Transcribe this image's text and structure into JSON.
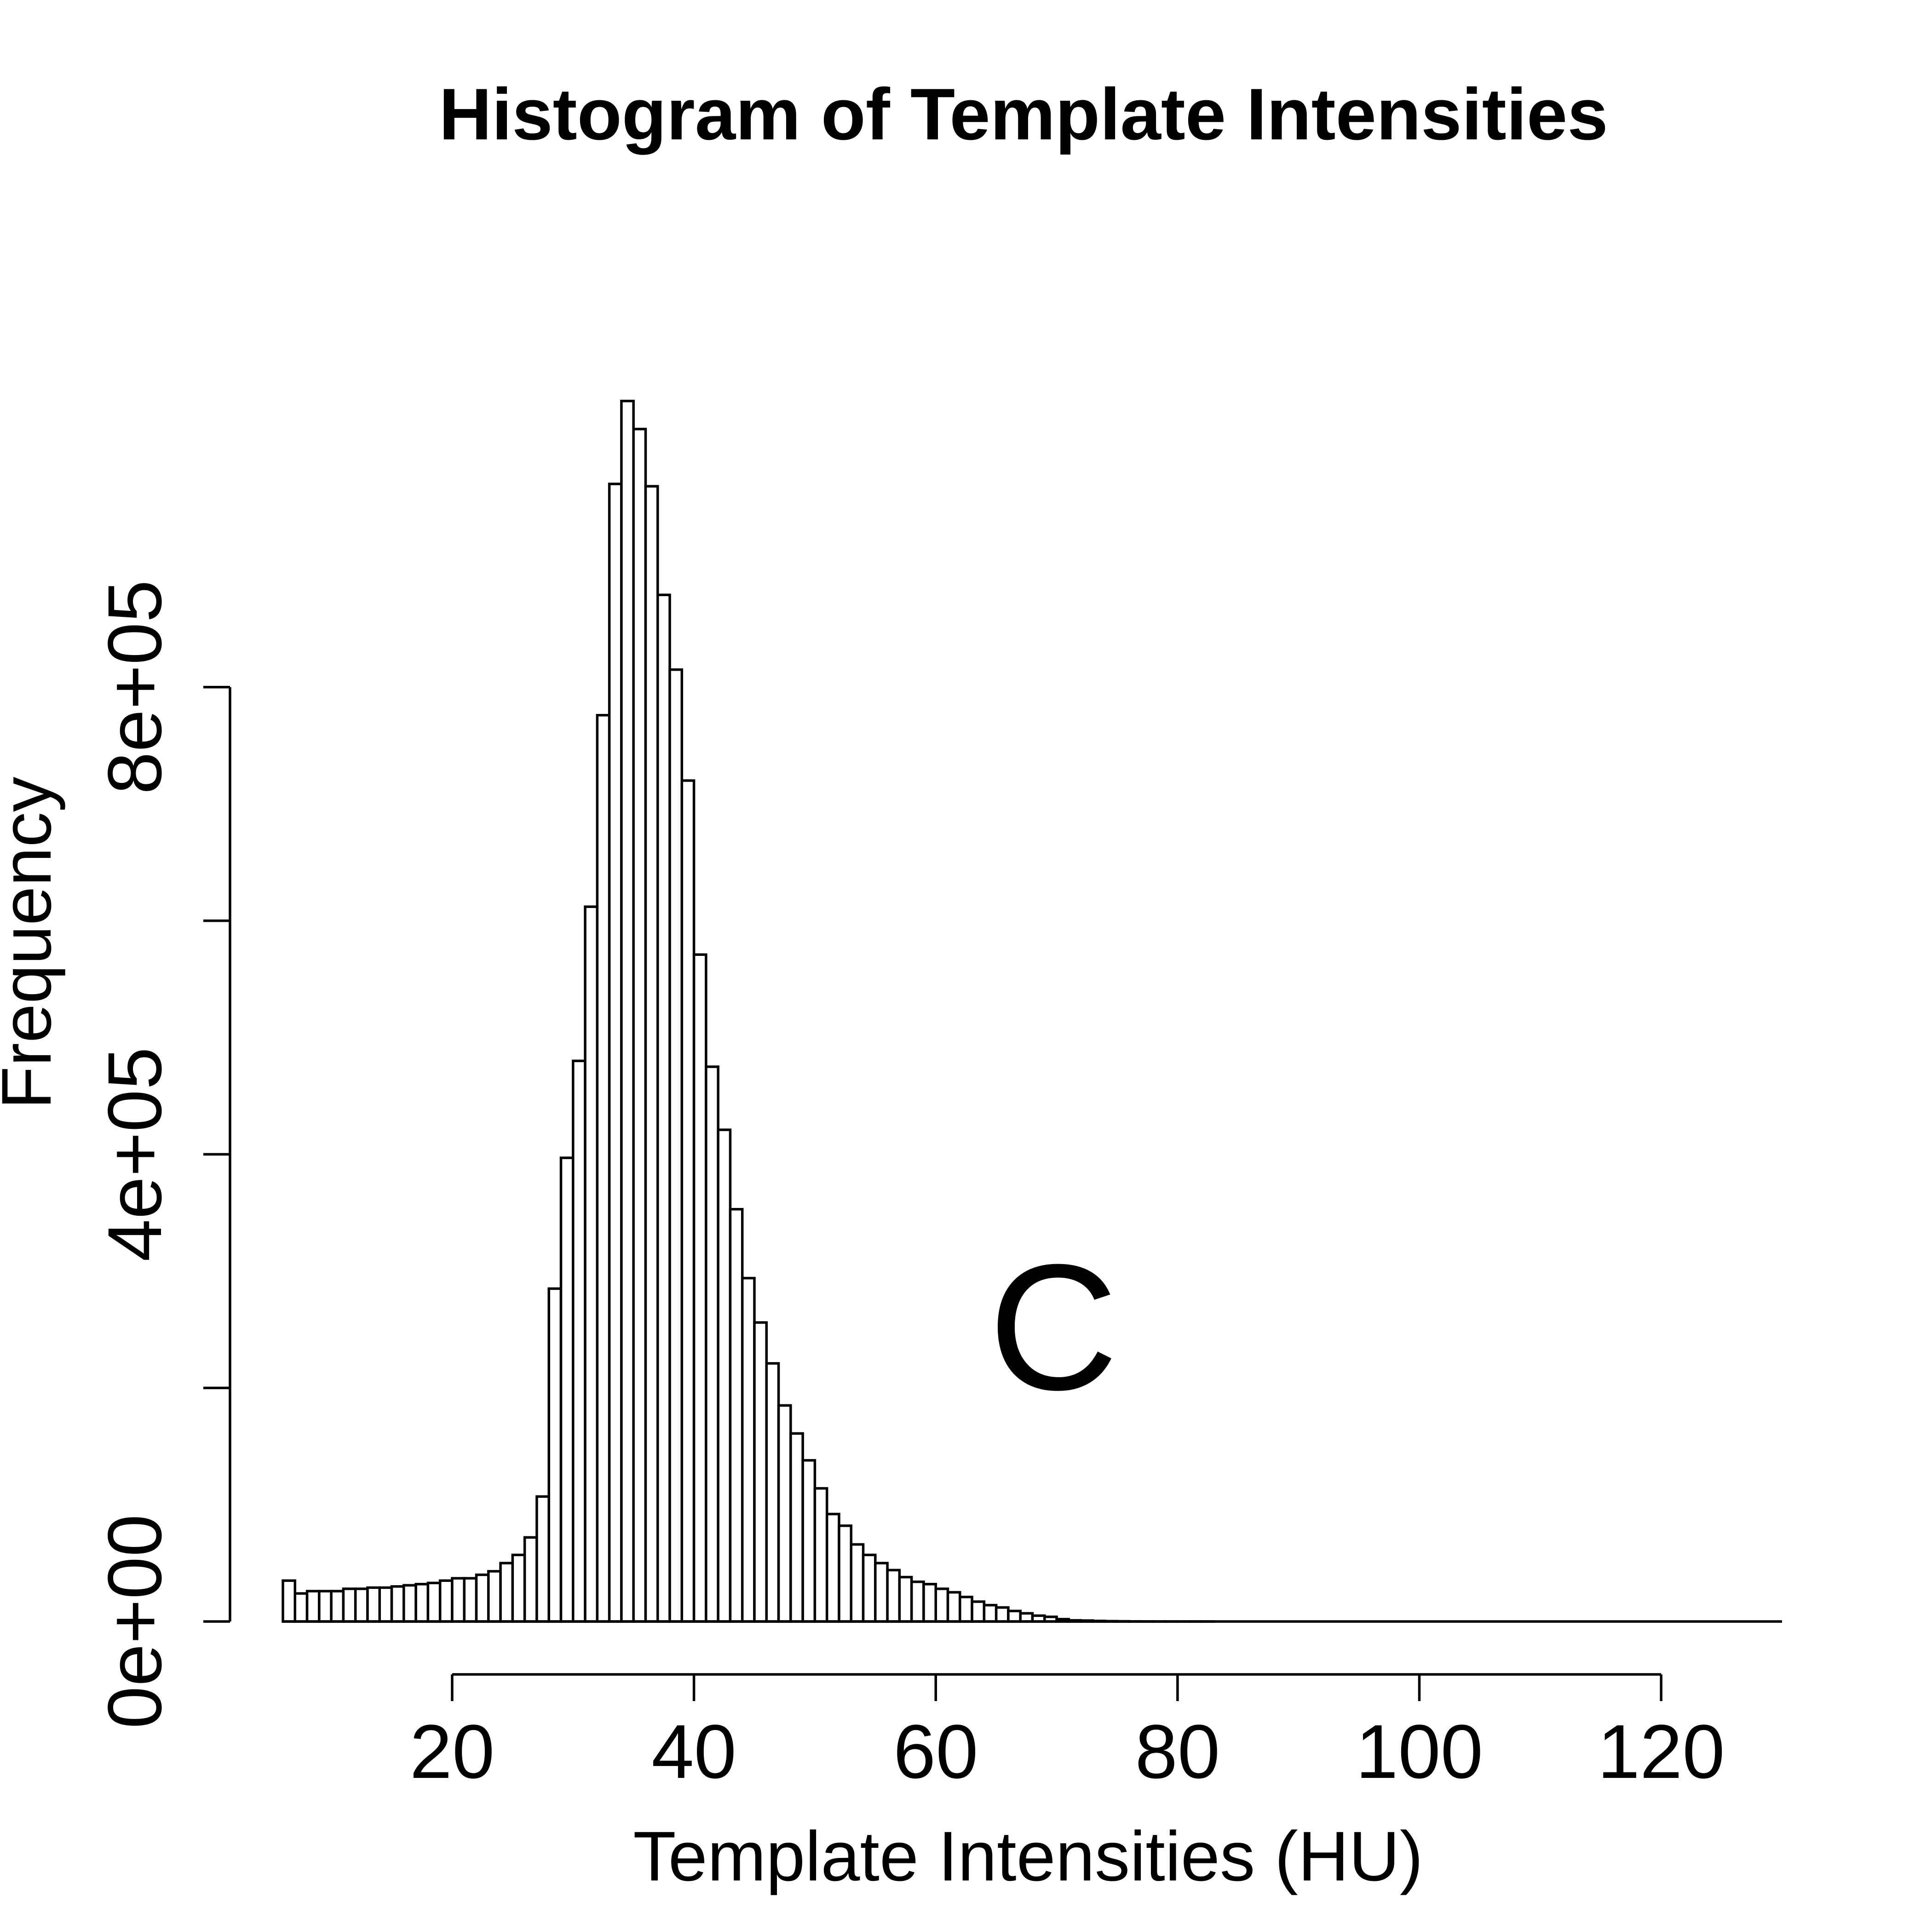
{
  "chart_data": {
    "type": "bar",
    "title": "Histogram of Template Intensities",
    "xlabel": "Template Intensities (HU)",
    "ylabel": "Frequency",
    "panel_label": "C",
    "xlim": [
      6,
      130
    ],
    "ylim": [
      0,
      920000
    ],
    "x_ticks": [
      20,
      40,
      60,
      80,
      100,
      120
    ],
    "x_tick_labels": [
      "20",
      "40",
      "60",
      "80",
      "100",
      "120"
    ],
    "y_ticks": [
      0,
      200000,
      400000,
      600000,
      800000
    ],
    "y_tick_labels": [
      "0e+00",
      "",
      "4e+05",
      "",
      "8e+05"
    ],
    "grid": false,
    "legend": "none",
    "bin_width": 1,
    "bins_start": [
      6,
      7,
      8,
      9,
      10,
      11,
      12,
      13,
      14,
      15,
      16,
      17,
      18,
      19,
      20,
      21,
      22,
      23,
      24,
      25,
      26,
      27,
      28,
      29,
      30,
      31,
      32,
      33,
      34,
      35,
      36,
      37,
      38,
      39,
      40,
      41,
      42,
      43,
      44,
      45,
      46,
      47,
      48,
      49,
      50,
      51,
      52,
      53,
      54,
      55,
      56,
      57,
      58,
      59,
      60,
      61,
      62,
      63,
      64,
      65,
      66,
      67,
      68,
      69,
      70,
      71,
      72,
      73,
      74,
      75,
      76,
      77,
      78,
      79,
      80,
      81,
      82,
      83,
      84,
      85,
      86,
      87,
      88,
      89,
      90,
      91,
      92,
      93,
      94,
      95,
      96,
      97,
      98,
      99,
      100,
      101,
      102,
      103,
      104,
      105,
      106,
      107,
      108,
      109,
      110,
      111,
      112,
      113,
      114,
      115,
      116,
      117,
      118,
      119,
      120,
      121,
      122,
      123,
      124,
      125,
      126,
      127,
      128,
      129
    ],
    "values": [
      35000,
      24000,
      26000,
      26000,
      26000,
      28000,
      28000,
      29000,
      29000,
      30000,
      31000,
      32000,
      33000,
      35000,
      37000,
      37000,
      40000,
      43000,
      50000,
      57000,
      72000,
      107000,
      285000,
      397000,
      480000,
      612000,
      776000,
      974000,
      1045000,
      1021000,
      972000,
      879000,
      815000,
      720000,
      571000,
      475000,
      421000,
      353000,
      294000,
      256000,
      221000,
      185000,
      161000,
      138000,
      114000,
      92000,
      82000,
      66000,
      57000,
      50000,
      44000,
      38000,
      34000,
      32000,
      28000,
      25000,
      21000,
      17000,
      14000,
      12000,
      9000,
      7000,
      5000,
      4000,
      2000,
      1000,
      800,
      500,
      300,
      200,
      100,
      50,
      20,
      10,
      5,
      5,
      5,
      0,
      0,
      0,
      0,
      0,
      0,
      0,
      0,
      0,
      0,
      0,
      0,
      0,
      0,
      0,
      0,
      0,
      0,
      0,
      0,
      0,
      0,
      0,
      0,
      0,
      0,
      0,
      0,
      0,
      0,
      0,
      0,
      0,
      0,
      0,
      0,
      0,
      0,
      0,
      0,
      0,
      0,
      0,
      0,
      0,
      0,
      0
    ]
  }
}
